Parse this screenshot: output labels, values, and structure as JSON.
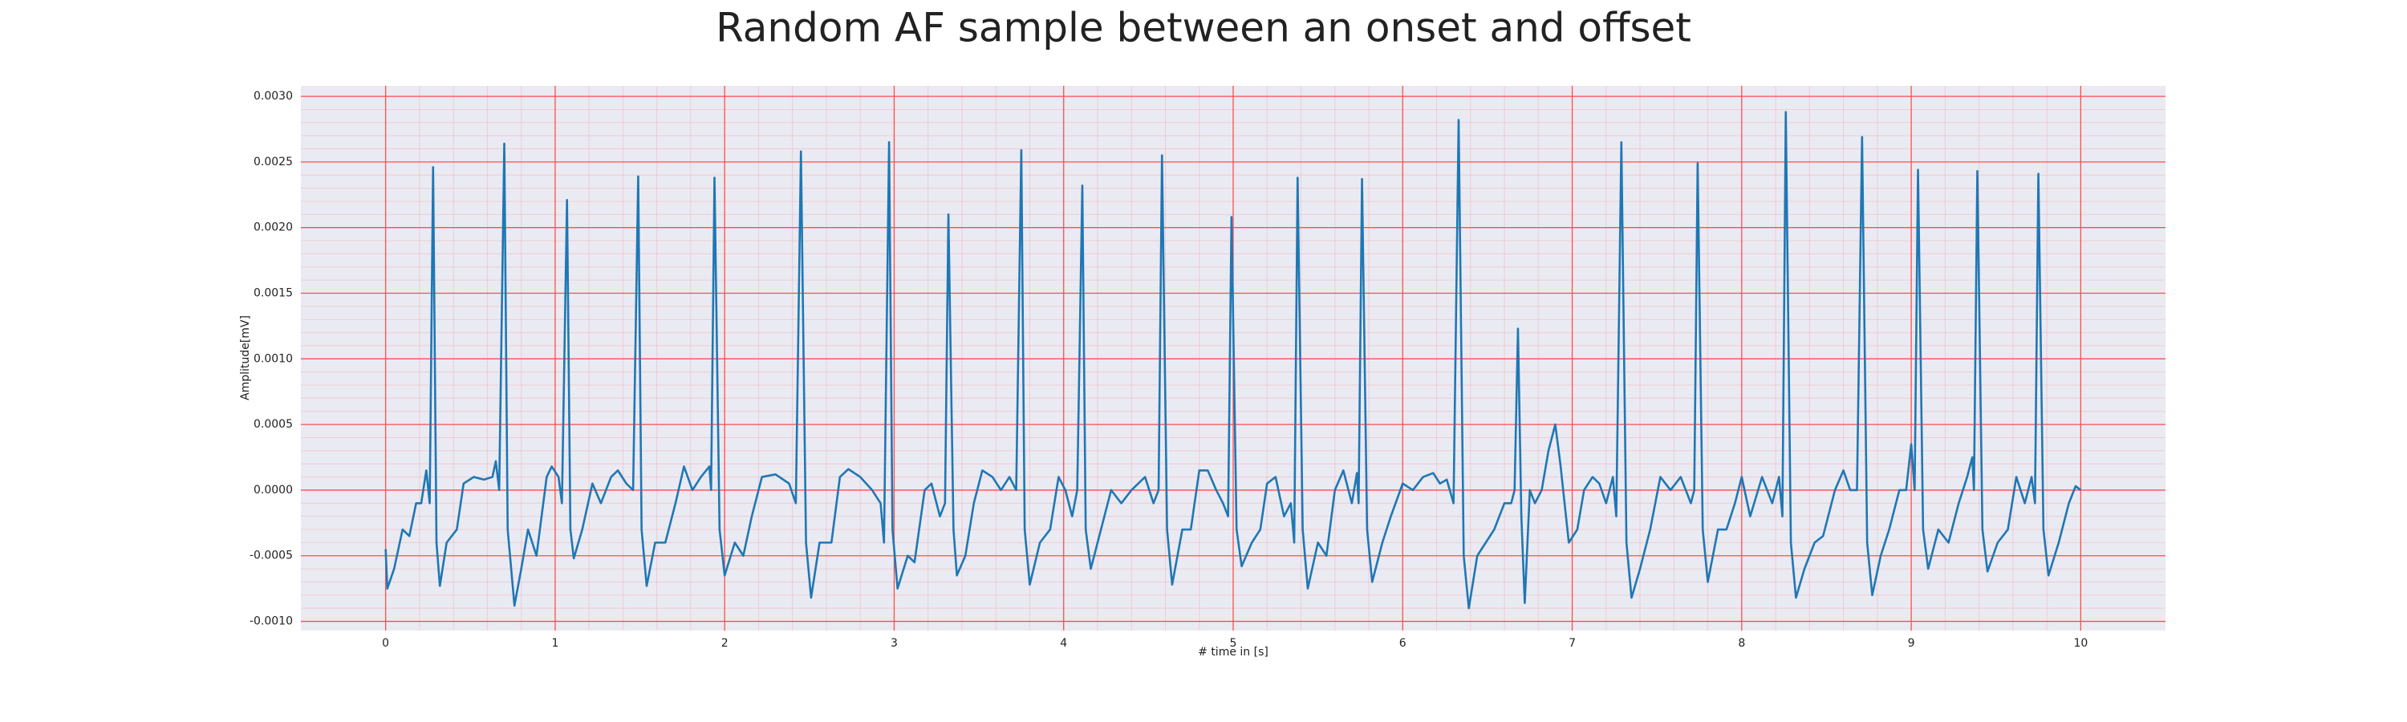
{
  "chart_data": {
    "type": "line",
    "title": "Random AF sample between an onset and offset",
    "xlabel": "# time in [s]",
    "ylabel": "Amplitude[mV]",
    "color": "#1f77b4",
    "grid": true,
    "grid_color": "#ff4d4d",
    "minor_grid": true,
    "background": "#eaeaf2",
    "xlim": [
      -0.5,
      10.5
    ],
    "ylim": [
      -0.00107,
      0.00308
    ],
    "xticks": [
      0,
      1,
      2,
      3,
      4,
      5,
      6,
      7,
      8,
      9,
      10
    ],
    "yticks": [
      {
        "value": -0.001,
        "label": "-0.0010"
      },
      {
        "value": -0.0005,
        "label": "-0.0005"
      },
      {
        "value": 0,
        "label": "0.0000"
      },
      {
        "value": 0.0005,
        "label": "0.0005"
      },
      {
        "value": 0.001,
        "label": "0.0010"
      },
      {
        "value": 0.0015,
        "label": "0.0015"
      },
      {
        "value": 0.002,
        "label": "0.0020"
      },
      {
        "value": 0.0025,
        "label": "0.0025"
      },
      {
        "value": 0.003,
        "label": "0.0030"
      }
    ],
    "x": [
      0.0,
      0.01,
      0.05,
      0.1,
      0.14,
      0.18,
      0.21,
      0.24,
      0.26,
      0.28,
      0.3,
      0.32,
      0.36,
      0.42,
      0.46,
      0.52,
      0.58,
      0.63,
      0.65,
      0.67,
      0.7,
      0.72,
      0.76,
      0.8,
      0.84,
      0.89,
      0.95,
      0.98,
      1.02,
      1.04,
      1.07,
      1.09,
      1.11,
      1.16,
      1.22,
      1.27,
      1.33,
      1.37,
      1.42,
      1.46,
      1.49,
      1.51,
      1.54,
      1.59,
      1.65,
      1.71,
      1.76,
      1.81,
      1.86,
      1.91,
      1.92,
      1.94,
      1.97,
      2.0,
      2.06,
      2.11,
      2.16,
      2.22,
      2.3,
      2.38,
      2.42,
      2.45,
      2.48,
      2.51,
      2.56,
      2.63,
      2.68,
      2.73,
      2.8,
      2.87,
      2.92,
      2.94,
      2.97,
      2.99,
      3.02,
      3.08,
      3.12,
      3.18,
      3.22,
      3.27,
      3.3,
      3.32,
      3.35,
      3.37,
      3.42,
      3.47,
      3.52,
      3.58,
      3.63,
      3.68,
      3.72,
      3.75,
      3.77,
      3.8,
      3.86,
      3.92,
      3.97,
      4.01,
      4.05,
      4.08,
      4.11,
      4.13,
      4.16,
      4.22,
      4.28,
      4.34,
      4.4,
      4.48,
      4.53,
      4.56,
      4.58,
      4.61,
      4.64,
      4.7,
      4.75,
      4.8,
      4.85,
      4.9,
      4.94,
      4.97,
      4.99,
      5.02,
      5.05,
      5.11,
      5.16,
      5.2,
      5.25,
      5.3,
      5.34,
      5.36,
      5.38,
      5.41,
      5.44,
      5.5,
      5.55,
      5.6,
      5.65,
      5.7,
      5.73,
      5.74,
      5.76,
      5.79,
      5.82,
      5.88,
      5.93,
      6.0,
      6.06,
      6.12,
      6.18,
      6.22,
      6.26,
      6.3,
      6.33,
      6.36,
      6.39,
      6.44,
      6.49,
      6.54,
      6.6,
      6.64,
      6.66,
      6.68,
      6.7,
      6.72,
      6.75,
      6.78,
      6.82,
      6.86,
      6.9,
      6.93,
      6.98,
      7.03,
      7.07,
      7.12,
      7.16,
      7.2,
      7.24,
      7.26,
      7.29,
      7.32,
      7.35,
      7.4,
      7.46,
      7.52,
      7.58,
      7.64,
      7.7,
      7.72,
      7.74,
      7.77,
      7.8,
      7.86,
      7.91,
      7.96,
      8.0,
      8.05,
      8.12,
      8.18,
      8.22,
      8.24,
      8.26,
      8.29,
      8.32,
      8.37,
      8.43,
      8.48,
      8.55,
      8.6,
      8.64,
      8.68,
      8.71,
      8.74,
      8.77,
      8.82,
      8.87,
      8.93,
      8.97,
      9.0,
      9.02,
      9.04,
      9.07,
      9.1,
      9.16,
      9.22,
      9.28,
      9.33,
      9.36,
      9.37,
      9.39,
      9.42,
      9.45,
      9.51,
      9.57,
      9.62,
      9.67,
      9.71,
      9.73,
      9.75,
      9.78,
      9.81,
      9.87,
      9.93,
      9.97,
      10.0
    ],
    "values": [
      -0.00045,
      -0.00075,
      -0.0006,
      -0.0003,
      -0.00035,
      -0.0001,
      -0.0001,
      0.00015,
      -0.0001,
      0.00246,
      -0.0004,
      -0.00073,
      -0.0004,
      -0.0003,
      5e-05,
      0.0001,
      8e-05,
      0.0001,
      0.00022,
      0.0,
      0.00264,
      -0.0003,
      -0.00088,
      -0.0006,
      -0.0003,
      -0.0005,
      0.0001,
      0.00018,
      0.0001,
      -0.0001,
      0.00221,
      -0.0003,
      -0.00052,
      -0.0003,
      5e-05,
      -0.0001,
      0.0001,
      0.00015,
      5e-05,
      0.0,
      0.00239,
      -0.0003,
      -0.00073,
      -0.0004,
      -0.0004,
      -0.0001,
      0.00018,
      0.0,
      0.0001,
      0.00018,
      0.0,
      0.00238,
      -0.0003,
      -0.00065,
      -0.0004,
      -0.0005,
      -0.0002,
      0.0001,
      0.00012,
      5e-05,
      -0.0001,
      0.00258,
      -0.0004,
      -0.00082,
      -0.0004,
      -0.0004,
      0.0001,
      0.00016,
      0.0001,
      0.0,
      -0.0001,
      -0.0004,
      0.00265,
      -0.0003,
      -0.00075,
      -0.0005,
      -0.00055,
      0.0,
      5e-05,
      -0.0002,
      -0.0001,
      0.0021,
      -0.0003,
      -0.00065,
      -0.0005,
      -0.0001,
      0.00015,
      0.0001,
      0.0,
      0.0001,
      0.0,
      0.00259,
      -0.0003,
      -0.00072,
      -0.0004,
      -0.0003,
      0.0001,
      0.0,
      -0.0002,
      0.0,
      0.00232,
      -0.0003,
      -0.0006,
      -0.0003,
      0.0,
      -0.0001,
      0.0,
      0.0001,
      -0.0001,
      0.0,
      0.00255,
      -0.0003,
      -0.00072,
      -0.0003,
      -0.0003,
      0.00015,
      0.00015,
      0.0,
      -0.0001,
      -0.0002,
      0.00208,
      -0.0003,
      -0.00058,
      -0.0004,
      -0.0003,
      5e-05,
      0.0001,
      -0.0002,
      -0.0001,
      -0.0004,
      0.00238,
      -0.0003,
      -0.00075,
      -0.0004,
      -0.0005,
      0.0,
      0.00015,
      -0.0001,
      0.00013,
      -0.0001,
      0.00237,
      -0.0003,
      -0.0007,
      -0.0004,
      -0.0002,
      5e-05,
      0.0,
      0.0001,
      0.00013,
      5e-05,
      8e-05,
      -0.0001,
      0.00282,
      -0.0005,
      -0.0009,
      -0.0005,
      -0.0004,
      -0.0003,
      -0.0001,
      -0.0001,
      0.0,
      0.00123,
      -0.0002,
      -0.00086,
      0.0,
      -0.0001,
      0.0,
      0.0003,
      0.0005,
      0.0002,
      -0.0004,
      -0.0003,
      0.0,
      0.0001,
      5e-05,
      -0.0001,
      0.0001,
      -0.0002,
      0.00265,
      -0.0004,
      -0.00082,
      -0.0006,
      -0.0003,
      0.0001,
      0.0,
      0.0001,
      -0.0001,
      0.0,
      0.00249,
      -0.0003,
      -0.0007,
      -0.0003,
      -0.0003,
      -0.0001,
      0.0001,
      -0.0002,
      0.0001,
      -0.0001,
      0.0001,
      -0.0002,
      0.00288,
      -0.0004,
      -0.00082,
      -0.0006,
      -0.0004,
      -0.00035,
      0.0,
      0.00015,
      0.0,
      0.0,
      0.00269,
      -0.0004,
      -0.0008,
      -0.0005,
      -0.0003,
      0.0,
      0.0,
      0.00035,
      0.0,
      0.00244,
      -0.0003,
      -0.0006,
      -0.0003,
      -0.0004,
      -0.0001,
      0.0001,
      0.00025,
      0.0,
      0.00243,
      -0.0003,
      -0.00062,
      -0.0004,
      -0.0003,
      0.0001,
      -0.0001,
      0.0001,
      -0.0001,
      0.00241,
      -0.0003,
      -0.00065,
      -0.0004,
      -0.0001,
      3e-05,
      0.0
    ]
  }
}
